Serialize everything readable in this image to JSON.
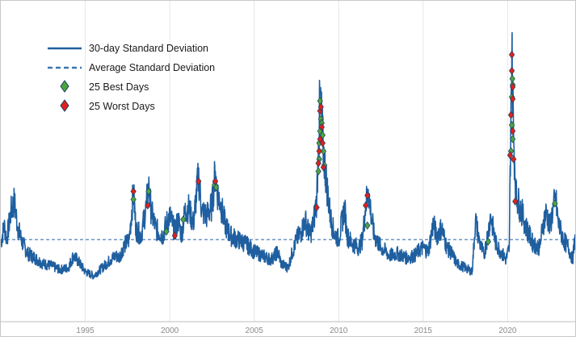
{
  "chart_data": {
    "type": "line",
    "title": "",
    "xlabel": "",
    "ylabel": "",
    "xlim": [
      1990.0,
      2024.0
    ],
    "ylim": [
      0,
      100
    ],
    "x_ticks": [
      "1995",
      "2000",
      "2005",
      "2010",
      "2015",
      "2020"
    ],
    "grid": "vertical",
    "legend_position": "top-left",
    "colors": {
      "line": "#1f5fa0",
      "average": "#3c74b0",
      "best": "#4aa63f",
      "worst": "#e0201b",
      "marker_edge": "#1f3f66",
      "grid": "#e6e6e6"
    },
    "legend": [
      {
        "label": "30-day Standard Deviation",
        "kind": "solid-line"
      },
      {
        "label": "Average Standard Deviation",
        "kind": "dashed-line"
      },
      {
        "label": "25 Best Days",
        "kind": "green-diamond"
      },
      {
        "label": "25 Worst Days",
        "kind": "red-diamond"
      }
    ],
    "average_value": 28,
    "series": [
      {
        "name": "30-day Standard Deviation",
        "points": [
          [
            1990.0,
            26
          ],
          [
            1990.2,
            35
          ],
          [
            1990.35,
            28
          ],
          [
            1990.6,
            42
          ],
          [
            1990.8,
            47
          ],
          [
            1991.0,
            34
          ],
          [
            1991.3,
            26
          ],
          [
            1991.6,
            21
          ],
          [
            1992.0,
            19
          ],
          [
            1992.5,
            16
          ],
          [
            1993.0,
            15
          ],
          [
            1993.5,
            13
          ],
          [
            1994.0,
            14
          ],
          [
            1994.3,
            20
          ],
          [
            1994.6,
            17
          ],
          [
            1995.0,
            12
          ],
          [
            1995.5,
            10
          ],
          [
            1996.0,
            14
          ],
          [
            1996.5,
            18
          ],
          [
            1996.8,
            20
          ],
          [
            1997.0,
            19
          ],
          [
            1997.3,
            25
          ],
          [
            1997.6,
            28
          ],
          [
            1997.85,
            52
          ],
          [
            1998.0,
            33
          ],
          [
            1998.3,
            30
          ],
          [
            1998.6,
            44
          ],
          [
            1998.75,
            55
          ],
          [
            1998.9,
            42
          ],
          [
            1999.2,
            33
          ],
          [
            1999.6,
            30
          ],
          [
            1999.8,
            36
          ],
          [
            2000.0,
            40
          ],
          [
            2000.3,
            32
          ],
          [
            2000.5,
            38
          ],
          [
            2000.7,
            30
          ],
          [
            2000.9,
            42
          ],
          [
            2001.1,
            44
          ],
          [
            2001.4,
            36
          ],
          [
            2001.7,
            60
          ],
          [
            2001.9,
            42
          ],
          [
            2002.2,
            40
          ],
          [
            2002.5,
            45
          ],
          [
            2002.7,
            62
          ],
          [
            2002.8,
            52
          ],
          [
            2003.0,
            46
          ],
          [
            2003.3,
            35
          ],
          [
            2003.6,
            30
          ],
          [
            2004.0,
            28
          ],
          [
            2004.5,
            26
          ],
          [
            2005.0,
            22
          ],
          [
            2005.5,
            20
          ],
          [
            2006.0,
            18
          ],
          [
            2006.4,
            22
          ],
          [
            2006.6,
            16
          ],
          [
            2007.0,
            14
          ],
          [
            2007.2,
            20
          ],
          [
            2007.5,
            28
          ],
          [
            2007.8,
            32
          ],
          [
            2008.0,
            38
          ],
          [
            2008.3,
            30
          ],
          [
            2008.5,
            36
          ],
          [
            2008.7,
            48
          ],
          [
            2008.8,
            75
          ],
          [
            2008.9,
            100
          ],
          [
            2009.1,
            72
          ],
          [
            2009.3,
            55
          ],
          [
            2009.5,
            40
          ],
          [
            2009.7,
            32
          ],
          [
            2010.0,
            28
          ],
          [
            2010.35,
            44
          ],
          [
            2010.5,
            30
          ],
          [
            2010.8,
            26
          ],
          [
            2011.2,
            24
          ],
          [
            2011.4,
            28
          ],
          [
            2011.6,
            45
          ],
          [
            2011.75,
            53
          ],
          [
            2011.9,
            42
          ],
          [
            2012.1,
            30
          ],
          [
            2012.5,
            24
          ],
          [
            2012.8,
            22
          ],
          [
            2013.0,
            20
          ],
          [
            2013.5,
            21
          ],
          [
            2014.0,
            19
          ],
          [
            2014.5,
            20
          ],
          [
            2014.8,
            23
          ],
          [
            2015.0,
            24
          ],
          [
            2015.3,
            22
          ],
          [
            2015.6,
            36
          ],
          [
            2015.8,
            30
          ],
          [
            2016.1,
            34
          ],
          [
            2016.4,
            24
          ],
          [
            2016.7,
            21
          ],
          [
            2017.0,
            16
          ],
          [
            2017.5,
            14
          ],
          [
            2017.9,
            12
          ],
          [
            2018.1,
            38
          ],
          [
            2018.3,
            28
          ],
          [
            2018.6,
            20
          ],
          [
            2018.85,
            32
          ],
          [
            2019.0,
            40
          ],
          [
            2019.3,
            26
          ],
          [
            2019.6,
            22
          ],
          [
            2019.9,
            18
          ],
          [
            2020.1,
            24
          ],
          [
            2020.2,
            95
          ],
          [
            2020.25,
            121
          ],
          [
            2020.35,
            80
          ],
          [
            2020.5,
            50
          ],
          [
            2020.7,
            45
          ],
          [
            2020.9,
            40
          ],
          [
            2021.1,
            34
          ],
          [
            2021.5,
            26
          ],
          [
            2021.9,
            24
          ],
          [
            2022.1,
            36
          ],
          [
            2022.3,
            42
          ],
          [
            2022.5,
            34
          ],
          [
            2022.7,
            44
          ],
          [
            2022.85,
            48
          ],
          [
            2023.0,
            36
          ],
          [
            2023.3,
            28
          ],
          [
            2023.6,
            24
          ],
          [
            2023.85,
            18
          ],
          [
            2024.0,
            30
          ]
        ]
      }
    ],
    "best_days": [
      [
        1997.85,
        48
      ],
      [
        1998.75,
        52
      ],
      [
        1999.8,
        32
      ],
      [
        2000.8,
        38
      ],
      [
        2002.65,
        55
      ],
      [
        2002.75,
        54
      ],
      [
        2008.8,
        62
      ],
      [
        2008.85,
        68
      ],
      [
        2008.85,
        76
      ],
      [
        2008.9,
        82
      ],
      [
        2008.95,
        88
      ],
      [
        2008.9,
        97
      ],
      [
        2009.0,
        86
      ],
      [
        2009.05,
        80
      ],
      [
        2009.1,
        72
      ],
      [
        2009.15,
        65
      ],
      [
        2011.7,
        35
      ],
      [
        2018.85,
        27
      ],
      [
        2020.2,
        72
      ],
      [
        2020.25,
        85
      ],
      [
        2020.25,
        99
      ],
      [
        2020.28,
        108
      ],
      [
        2020.3,
        105
      ],
      [
        2020.3,
        78
      ],
      [
        2022.8,
        46
      ]
    ],
    "worst_days": [
      [
        1997.85,
        52
      ],
      [
        1998.7,
        45
      ],
      [
        2000.3,
        30
      ],
      [
        2001.7,
        57
      ],
      [
        2002.7,
        57
      ],
      [
        2008.7,
        44
      ],
      [
        2008.8,
        66
      ],
      [
        2008.85,
        72
      ],
      [
        2008.9,
        78
      ],
      [
        2008.9,
        92
      ],
      [
        2008.95,
        94
      ],
      [
        2009.0,
        84
      ],
      [
        2009.05,
        76
      ],
      [
        2009.1,
        64
      ],
      [
        2011.6,
        45
      ],
      [
        2011.7,
        50
      ],
      [
        2020.15,
        70
      ],
      [
        2020.2,
        90
      ],
      [
        2020.25,
        120
      ],
      [
        2020.25,
        112
      ],
      [
        2020.3,
        98
      ],
      [
        2020.3,
        104
      ],
      [
        2020.3,
        82
      ],
      [
        2020.35,
        68
      ],
      [
        2020.45,
        47
      ]
    ]
  }
}
